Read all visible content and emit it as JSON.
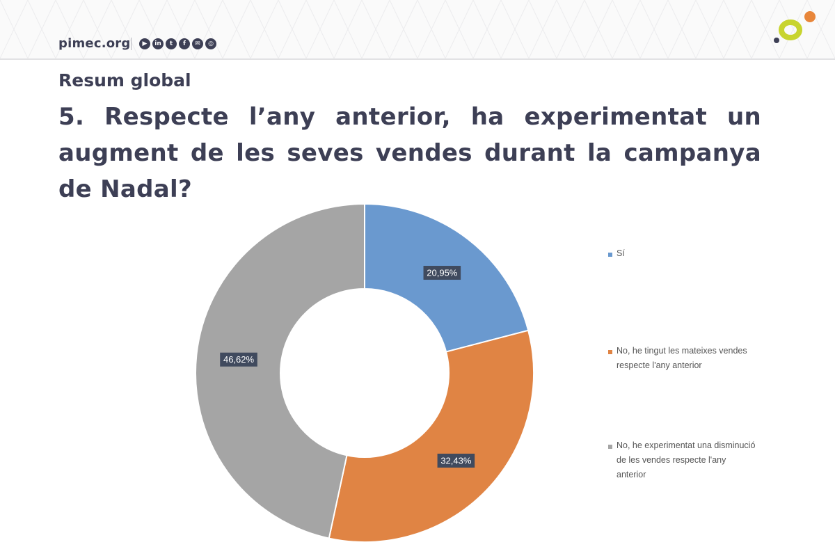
{
  "header": {
    "brand": "pimec.org",
    "social_icons": [
      {
        "name": "youtube-icon",
        "glyph": "▶"
      },
      {
        "name": "linkedin-icon",
        "glyph": "in"
      },
      {
        "name": "twitter-icon",
        "glyph": "t"
      },
      {
        "name": "facebook-icon",
        "glyph": "f"
      },
      {
        "name": "email-icon",
        "glyph": "✉"
      },
      {
        "name": "instagram-icon",
        "glyph": "◎"
      }
    ],
    "logo_colors": [
      "#c8d42e",
      "#e8863a",
      "#3d3f55"
    ]
  },
  "section_title": "Resum global",
  "question": "5. Respecte l’any anterior, ha experimentat un augment de les seves vendes durant la campanya de Nadal?",
  "chart_data": {
    "type": "pie",
    "variant": "donut",
    "categories": [
      "Sí",
      "No, he tingut les mateixes vendes respecte l'any anterior",
      "No, he experimentat una disminució de les vendes respecte l'any anterior"
    ],
    "values": [
      20.95,
      32.43,
      46.62
    ],
    "data_labels": [
      "20,95%",
      "32,43%",
      "46,62%"
    ],
    "colors": [
      "#6a99cf",
      "#e08444",
      "#a5a5a5"
    ],
    "legend_position": "right",
    "title": ""
  }
}
